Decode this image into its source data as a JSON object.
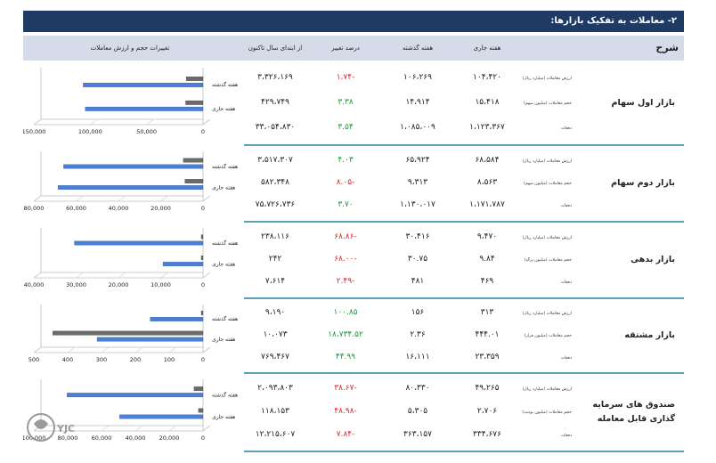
{
  "title": "۲- معاملات به تفکیک بازارها:",
  "header": {
    "desc": "شرح",
    "current_week": "هفته جاری",
    "last_week": "هفته گذشته",
    "pct_change": "درصد تغییر",
    "ytd": "از ابتدای سال تاکنون",
    "chart_title": "تغییرات حجم و ارزش معاملات"
  },
  "sections": [
    {
      "name": "بازار اول سهام",
      "rows": [
        {
          "label": "ارزش معاملات (میلیارد ریال)",
          "cur": "۱۰۴،۴۲۰",
          "prev": "۱۰۶،۲۶۹",
          "pct": "-۱.۷۴",
          "ytd": "۳،۳۲۶،۱۶۹"
        },
        {
          "label": "حجم معاملات (میلیون سهم)",
          "cur": "۱۵،۴۱۸",
          "prev": "۱۴،۹۱۴",
          "pct": "۳.۳۸",
          "ytd": "۴۲۹،۷۴۹"
        },
        {
          "label": "دفعات",
          "cur": "۱،۱۲۳،۳۶۷",
          "prev": "۱،۰۸۵،۰۰۹",
          "pct": "۳.۵۴",
          "ytd": "۳۳،۰۵۴،۸۳۰"
        }
      ]
    },
    {
      "name": "بازار دوم سهام",
      "rows": [
        {
          "label": "ارزش معاملات (میلیارد ریال)",
          "cur": "۶۸،۵۸۴",
          "prev": "۶۵،۹۲۴",
          "pct": "۴.۰۳",
          "ytd": "۳،۵۱۷،۳۰۷"
        },
        {
          "label": "حجم معاملات (میلیون سهم)",
          "cur": "۸،۵۶۳",
          "prev": "۹،۳۱۳",
          "pct": "-۸.۰۵",
          "ytd": "۵۸۲،۳۴۸"
        },
        {
          "label": "دفعات",
          "cur": "۱،۱۷۱،۷۸۷",
          "prev": "۱،۱۳۰،۰۱۷",
          "pct": "۳.۷۰",
          "ytd": "۷۵،۷۲۶،۷۳۶"
        }
      ]
    },
    {
      "name": "بازار بدهی",
      "rows": [
        {
          "label": "ارزش معاملات (میلیارد ریال)",
          "cur": "۹،۴۷۰",
          "prev": "۳۰،۴۱۶",
          "pct": "-۶۸.۸۶",
          "ytd": "۲۳۸،۱۱۶"
        },
        {
          "label": "حجم معاملات (میلیون برگه)",
          "cur": "۹.۸۴",
          "prev": "۳۰.۷۵",
          "pct": "-۶۸.۰۰",
          "ytd": "۲۴۲"
        },
        {
          "label": "دفعات",
          "cur": "۴۶۹",
          "prev": "۴۸۱",
          "pct": "-۲.۴۹",
          "ytd": "۷،۶۱۴"
        }
      ]
    },
    {
      "name": "بازار مشتقه",
      "rows": [
        {
          "label": "ارزش معاملات (میلیارد ریال)",
          "cur": "۳۱۳",
          "prev": "۱۵۶",
          "pct": "۱۰۰.۸۵",
          "ytd": "۹،۱۹۰"
        },
        {
          "label": "حجم معاملات (میلیون قرار)",
          "cur": "۴۴۴.۰۱",
          "prev": "۲.۳۶",
          "pct": "۱۸،۷۳۴.۵۲",
          "ytd": "۱۰،۰۷۳"
        },
        {
          "label": "دفعات",
          "cur": "۲۳،۳۵۹",
          "prev": "۱۶،۱۱۱",
          "pct": "۴۴.۹۹",
          "ytd": "۷۶۹،۴۶۷"
        }
      ]
    },
    {
      "name": "صندوق های سرمایه گذاری قابل معامله",
      "rows": [
        {
          "label": "ارزش معاملات (میلیارد ریال)",
          "cur": "۴۹،۲۶۵",
          "prev": "۸۰،۳۳۰",
          "pct": "-۳۸.۶۷",
          "ytd": "۲،۰۹۳،۸۰۳"
        },
        {
          "label": "حجم معاملات (میلیون یونیت)",
          "cur": "۲،۷۰۶",
          "prev": "۵،۳۰۵",
          "pct": "-۴۸.۹۸",
          "ytd": "۱۱۸،۱۵۳"
        },
        {
          "label": "دفعات",
          "cur": "۳۳۴،۶۷۶",
          "prev": "۳۶۳،۱۵۷",
          "pct": "-۷.۸۴",
          "ytd": "۱۲،۲۱۵،۶۰۷"
        }
      ]
    }
  ],
  "chart_data": [
    {
      "type": "bar",
      "categories": [
        "هفته گذشته",
        "هفته جاری"
      ],
      "xlim": [
        0,
        150000
      ],
      "ticks": [
        "150,000",
        "100,000",
        "50,000",
        "0"
      ],
      "series": [
        {
          "values": [
            106269,
            104420
          ]
        },
        {
          "values": [
            14914,
            15418
          ]
        }
      ]
    },
    {
      "type": "bar",
      "categories": [
        "هفته گذشته",
        "هفته جاری"
      ],
      "xlim": [
        0,
        80000
      ],
      "ticks": [
        "80,000",
        "60,000",
        "40,000",
        "20,000",
        "0"
      ],
      "series": [
        {
          "values": [
            65924,
            68584
          ]
        },
        {
          "values": [
            9313,
            8563
          ]
        }
      ]
    },
    {
      "type": "bar",
      "categories": [
        "هفته گذشته",
        "هفته جاری"
      ],
      "xlim": [
        0,
        40000
      ],
      "ticks": [
        "40,000",
        "30,000",
        "20,000",
        "10,000",
        "0"
      ],
      "series": [
        {
          "values": [
            30416,
            9470
          ]
        },
        {
          "values": [
            30.75,
            9.84
          ]
        }
      ]
    },
    {
      "type": "bar",
      "categories": [
        "هفته گذشته",
        "هفته جاری"
      ],
      "xlim": [
        0,
        500
      ],
      "ticks": [
        "500",
        "400",
        "300",
        "200",
        "100",
        "0"
      ],
      "series": [
        {
          "values": [
            156,
            313
          ]
        },
        {
          "values": [
            2.36,
            444.01
          ]
        }
      ]
    },
    {
      "type": "bar",
      "categories": [
        "هفته گذشته",
        "هفته جاری"
      ],
      "xlim": [
        0,
        100000
      ],
      "ticks": [
        "100,000",
        "80,000",
        "60,000",
        "40,000",
        "20,000",
        "0"
      ],
      "series": [
        {
          "values": [
            80330,
            49265
          ]
        },
        {
          "values": [
            5305,
            2706
          ]
        }
      ]
    }
  ],
  "watermark": "YJC",
  "colors": {
    "header_bg": "#1f3a63",
    "sub_header": "#d5dbe8",
    "sep": "#5aa0b8",
    "blue_bar": "#4a7fd6",
    "gray_bar": "#6b6b6b",
    "red": "#e0262d",
    "green": "#1e9a3a"
  }
}
